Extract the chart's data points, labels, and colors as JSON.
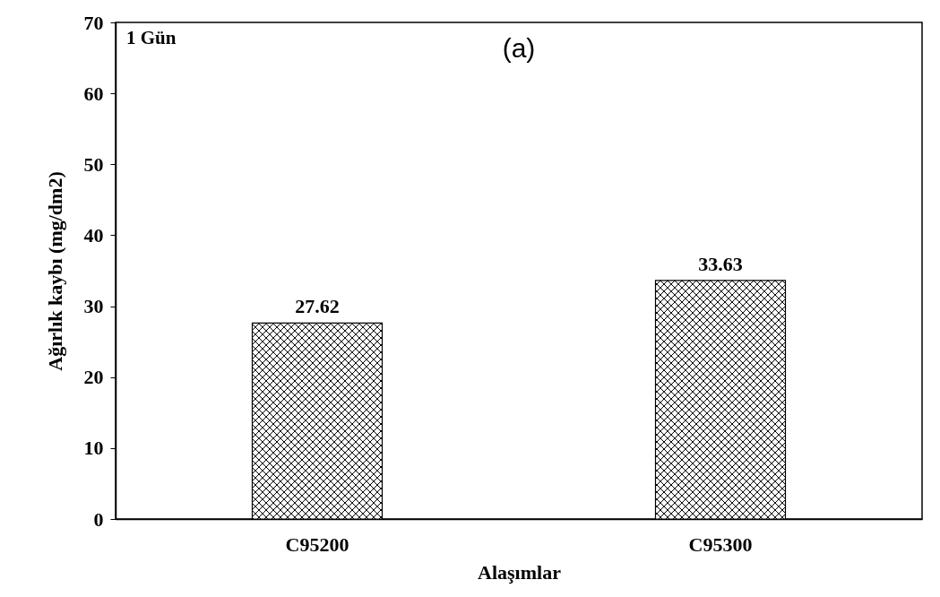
{
  "chart_data": {
    "type": "bar",
    "xlabel": "Alaşımlar",
    "ylabel": "Ağırlık kaybı  (mg/dm2)",
    "annotations": [
      "1 Gün",
      "(a)"
    ],
    "categories": [
      "C95200",
      "C95300"
    ],
    "values": [
      27.62,
      33.63
    ],
    "color": "#000000",
    "ylim": [
      0,
      70
    ],
    "yticks": [
      0,
      10,
      20,
      30,
      40,
      50,
      60,
      70
    ],
    "data_labels": true,
    "grid": false
  }
}
